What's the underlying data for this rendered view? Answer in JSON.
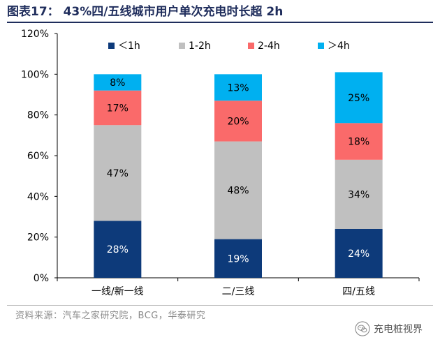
{
  "title": "图表17： 43%四/五线城市用户单次充电时长超 2h",
  "source": "资料来源：汽车之家研究院，BCG，华泰研究",
  "watermark": "充电桩视界",
  "chart_data": {
    "type": "bar",
    "stacked": true,
    "categories": [
      "一线/新一线",
      "二/三线",
      "四/五线"
    ],
    "series": [
      {
        "name": "＜1h",
        "color": "#0d3a7a",
        "values": [
          28,
          19,
          24
        ],
        "labels": [
          "28%",
          "19%",
          "24%"
        ]
      },
      {
        "name": "1-2h",
        "color": "#c0c0c0",
        "values": [
          47,
          48,
          34
        ],
        "labels": [
          "47%",
          "48%",
          "34%"
        ]
      },
      {
        "name": "2-4h",
        "color": "#fa6a6a",
        "values": [
          17,
          20,
          18
        ],
        "labels": [
          "17%",
          "20%",
          "18%"
        ]
      },
      {
        "name": "＞4h",
        "color": "#00b0f0",
        "values": [
          8,
          13,
          25
        ],
        "labels": [
          "8%",
          "13%",
          "25%"
        ]
      }
    ],
    "ylim": [
      0,
      120
    ],
    "yticks": [
      "0%",
      "20%",
      "40%",
      "60%",
      "80%",
      "100%",
      "120%"
    ],
    "ytick_values": [
      0,
      20,
      40,
      60,
      80,
      100,
      120
    ],
    "legend_position": "top",
    "xlabel": "",
    "ylabel": ""
  }
}
